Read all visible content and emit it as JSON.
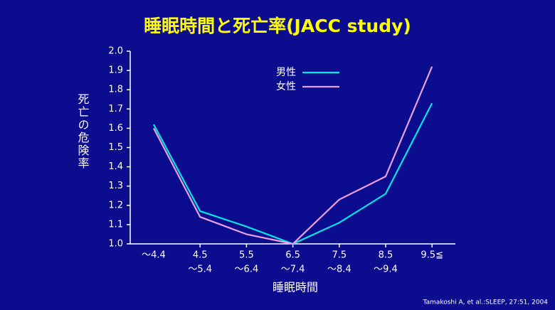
{
  "chart_data": {
    "type": "line",
    "title": "睡眠時間と死亡率(JACC study)",
    "y_label": "死亡の危険率",
    "x_label": "睡眠時間",
    "source": "Tamakoshi A, et al.:SLEEP, 27:51, 2004",
    "categories": [
      [
        "～4.4"
      ],
      [
        "4.5",
        "～5.4"
      ],
      [
        "5.5",
        "～6.4"
      ],
      [
        "6.5",
        "～7.4"
      ],
      [
        "7.5",
        "～8.4"
      ],
      [
        "8.5",
        "～9.4"
      ],
      [
        "9.5≦"
      ]
    ],
    "series": [
      {
        "name": "男性",
        "color": "#00e6e6",
        "values": [
          1.62,
          1.17,
          1.09,
          1.0,
          1.11,
          1.26,
          1.73
        ]
      },
      {
        "name": "女性",
        "color": "#e8a0e0",
        "values": [
          1.6,
          1.14,
          1.05,
          1.0,
          1.23,
          1.35,
          1.92
        ]
      }
    ],
    "ylim": [
      1.0,
      2.0
    ],
    "yticks": [
      {
        "value": 1.0,
        "label": "1.0"
      },
      1.1,
      1.2,
      1.3,
      1.4,
      1.5,
      1.6,
      1.7,
      1.8,
      1.9,
      {
        "value": 2.0,
        "label": "2.0"
      }
    ]
  }
}
